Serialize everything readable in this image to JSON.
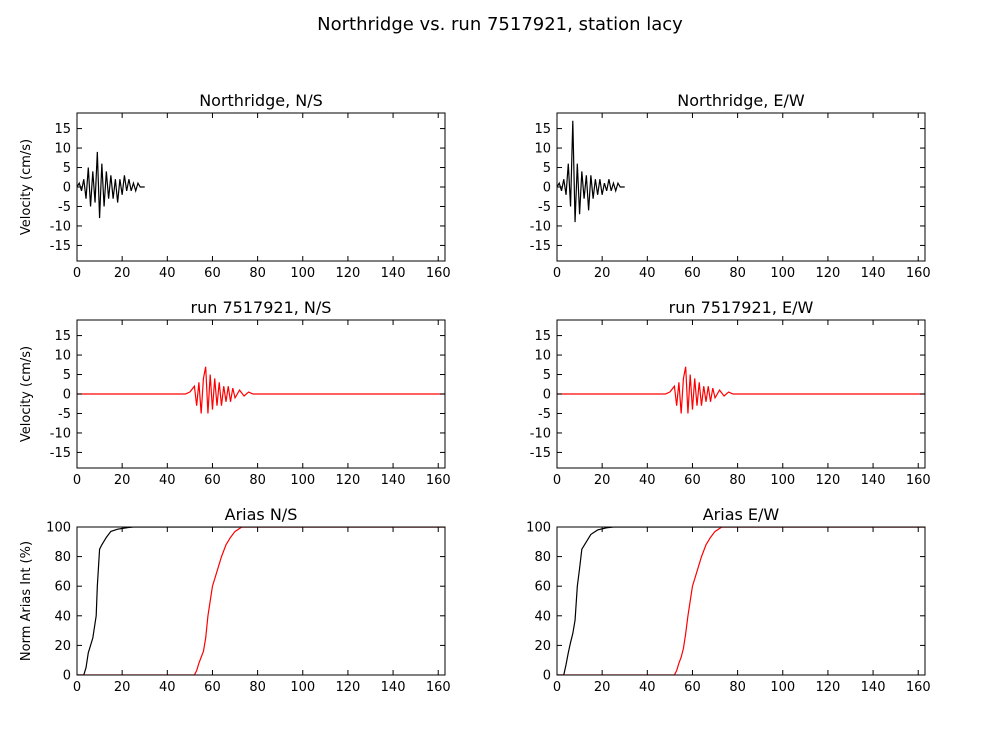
{
  "figure_title": "Northridge vs. run 7517921, station lacy",
  "chart_data": [
    {
      "type": "line",
      "title": "Northridge, N/S",
      "xlabel": "",
      "ylabel": "Velocity (cm/s)",
      "xlim": [
        0,
        163
      ],
      "ylim": [
        -19,
        19
      ],
      "xticks": [
        0,
        20,
        40,
        60,
        80,
        100,
        120,
        140,
        160
      ],
      "yticks": [
        -15,
        -10,
        -5,
        0,
        5,
        10,
        15
      ],
      "series": [
        {
          "color": "#000000",
          "x": [
            0,
            1,
            2,
            3,
            4,
            5,
            6,
            7,
            8,
            9,
            10,
            11,
            12,
            13,
            14,
            15,
            16,
            17,
            18,
            19,
            20,
            21,
            22,
            23,
            24,
            25,
            26,
            27,
            28,
            29,
            30
          ],
          "y": [
            0,
            1,
            -1,
            2,
            -3,
            5,
            -5,
            4,
            -4,
            9,
            -8,
            6,
            -5,
            4,
            -3,
            3,
            -3,
            2,
            -4,
            2,
            -2,
            3,
            -1,
            2,
            -1,
            1,
            -1,
            1,
            0,
            0,
            0
          ]
        }
      ]
    },
    {
      "type": "line",
      "title": "Northridge, E/W",
      "xlabel": "",
      "ylabel": "",
      "xlim": [
        0,
        163
      ],
      "ylim": [
        -19,
        19
      ],
      "xticks": [
        0,
        20,
        40,
        60,
        80,
        100,
        120,
        140,
        160
      ],
      "yticks": [
        -15,
        -10,
        -5,
        0,
        5,
        10,
        15
      ],
      "series": [
        {
          "color": "#000000",
          "x": [
            0,
            1,
            2,
            3,
            4,
            5,
            6,
            7,
            8,
            9,
            10,
            11,
            12,
            13,
            14,
            15,
            16,
            17,
            18,
            19,
            20,
            21,
            22,
            23,
            24,
            25,
            26,
            27,
            28,
            29,
            30
          ],
          "y": [
            0,
            1,
            -1,
            2,
            -2,
            6,
            -5,
            17,
            -9,
            6,
            -7,
            4,
            -3,
            3,
            -6,
            3,
            -3,
            2,
            -2,
            2,
            -2,
            1,
            -1,
            2,
            -1,
            1,
            -1,
            1,
            0,
            0,
            0
          ]
        }
      ]
    },
    {
      "type": "line",
      "title": "run 7517921, N/S",
      "xlabel": "",
      "ylabel": "Velocity (cm/s)",
      "xlim": [
        0,
        163
      ],
      "ylim": [
        -19,
        19
      ],
      "xticks": [
        0,
        20,
        40,
        60,
        80,
        100,
        120,
        140,
        160
      ],
      "yticks": [
        -15,
        -10,
        -5,
        0,
        5,
        10,
        15
      ],
      "series": [
        {
          "color": "#ff0000",
          "x": [
            0,
            40,
            48,
            50,
            52,
            53,
            54,
            55,
            56,
            57,
            58,
            59,
            60,
            61,
            62,
            63,
            64,
            65,
            66,
            67,
            68,
            69,
            70,
            72,
            74,
            76,
            78,
            80,
            100,
            163
          ],
          "y": [
            0,
            0,
            0,
            0.5,
            2,
            -3,
            3,
            -5,
            4,
            7,
            -5,
            5,
            -4,
            4,
            -3,
            3,
            -3,
            2,
            -2,
            2,
            -2,
            1.5,
            -1,
            1,
            -0.5,
            0.5,
            0,
            0,
            0,
            0
          ]
        }
      ]
    },
    {
      "type": "line",
      "title": "run 7517921, E/W",
      "xlabel": "",
      "ylabel": "",
      "xlim": [
        0,
        163
      ],
      "ylim": [
        -19,
        19
      ],
      "xticks": [
        0,
        20,
        40,
        60,
        80,
        100,
        120,
        140,
        160
      ],
      "yticks": [
        -15,
        -10,
        -5,
        0,
        5,
        10,
        15
      ],
      "series": [
        {
          "color": "#ff0000",
          "x": [
            0,
            40,
            48,
            50,
            52,
            53,
            54,
            55,
            56,
            57,
            58,
            59,
            60,
            61,
            62,
            63,
            64,
            65,
            66,
            67,
            68,
            69,
            70,
            72,
            74,
            76,
            78,
            80,
            100,
            163
          ],
          "y": [
            0,
            0,
            0,
            0.5,
            2,
            -3,
            3,
            -5,
            4,
            7,
            -5,
            5,
            -4,
            4,
            -3,
            3,
            -3,
            2,
            -2,
            2,
            -2,
            1.5,
            -1,
            1,
            -0.5,
            0.5,
            0,
            0,
            0,
            0
          ]
        }
      ]
    },
    {
      "type": "line",
      "title": "Arias N/S",
      "xlabel": "",
      "ylabel": "Norm Arias Int (%)",
      "xlim": [
        0,
        163
      ],
      "ylim": [
        0,
        100
      ],
      "xticks": [
        0,
        20,
        40,
        60,
        80,
        100,
        120,
        140,
        160
      ],
      "yticks": [
        0,
        20,
        40,
        60,
        80,
        100
      ],
      "series": [
        {
          "color": "#000000",
          "x": [
            0,
            3,
            4,
            5,
            6,
            7,
            8,
            8.5,
            9,
            10,
            11,
            13,
            15,
            18,
            22,
            25,
            163
          ],
          "y": [
            0,
            0,
            5,
            15,
            20,
            25,
            35,
            40,
            60,
            85,
            88,
            93,
            97,
            98.5,
            99.5,
            100,
            100
          ]
        },
        {
          "color": "#ff0000",
          "x": [
            0,
            52,
            53,
            54,
            55,
            56,
            57,
            58,
            59,
            60,
            62,
            64,
            66,
            68,
            70,
            72,
            73,
            163
          ],
          "y": [
            0,
            0,
            3,
            8,
            12,
            16,
            25,
            40,
            50,
            60,
            70,
            80,
            88,
            93,
            97,
            99,
            100,
            100
          ]
        }
      ]
    },
    {
      "type": "line",
      "title": "Arias E/W",
      "xlabel": "",
      "ylabel": "",
      "xlim": [
        0,
        163
      ],
      "ylim": [
        0,
        100
      ],
      "xticks": [
        0,
        20,
        40,
        60,
        80,
        100,
        120,
        140,
        160
      ],
      "yticks": [
        0,
        20,
        40,
        60,
        80,
        100
      ],
      "series": [
        {
          "color": "#000000",
          "x": [
            0,
            3,
            4,
            5,
            6,
            7,
            8,
            9,
            10,
            11,
            13,
            15,
            18,
            22,
            25,
            163
          ],
          "y": [
            0,
            0,
            7,
            15,
            22,
            28,
            37,
            60,
            72,
            85,
            90,
            95,
            98,
            99.5,
            100,
            100
          ]
        },
        {
          "color": "#ff0000",
          "x": [
            0,
            52,
            53,
            54,
            55,
            56,
            57,
            58,
            59,
            60,
            62,
            64,
            66,
            68,
            70,
            72,
            73,
            163
          ],
          "y": [
            0,
            0,
            3,
            8,
            12,
            18,
            28,
            40,
            50,
            60,
            70,
            80,
            88,
            93,
            97,
            99,
            100,
            100
          ]
        }
      ]
    }
  ]
}
